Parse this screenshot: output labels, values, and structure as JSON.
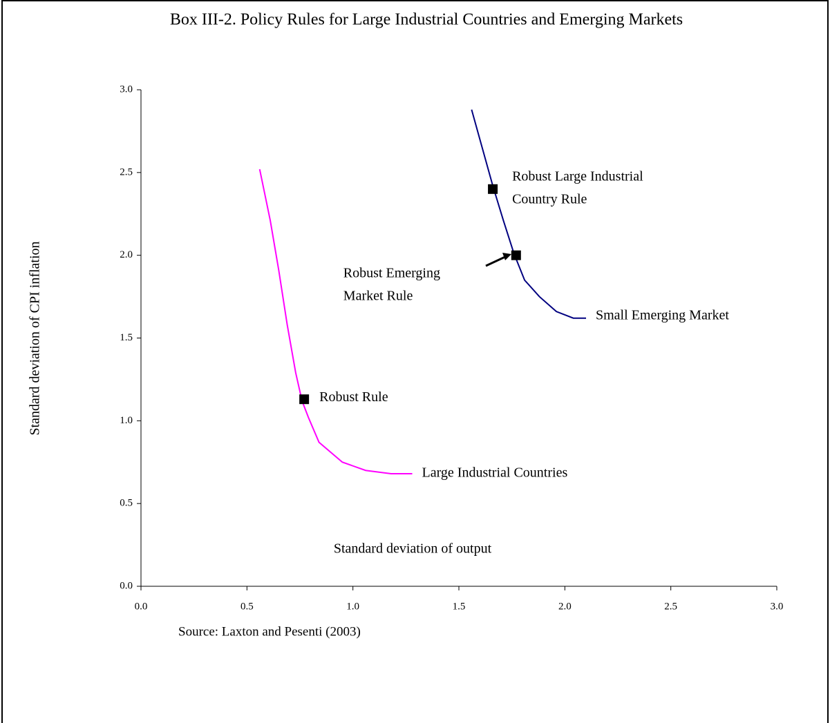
{
  "chart_data": {
    "type": "line",
    "title": "Box III-2. Policy Rules for Large Industrial Countries and Emerging Markets",
    "x_label": "Standard deviation of output",
    "y_label": "Standard deviation of CPI inflation",
    "source": "Source: Laxton and Pesenti (2003)",
    "xlim": [
      0,
      3
    ],
    "ylim": [
      0,
      3
    ],
    "xticks": [
      {
        "value": 0,
        "label": "0.0"
      },
      {
        "value": 0.5,
        "label": "0.5"
      },
      {
        "value": 1,
        "label": "1.0"
      },
      {
        "value": 1.5,
        "label": "1.5"
      },
      {
        "value": 2,
        "label": "2.0"
      },
      {
        "value": 2.5,
        "label": "2.5"
      },
      {
        "value": 3,
        "label": "3.0"
      }
    ],
    "yticks": [
      {
        "value": 0,
        "label": "0.0"
      },
      {
        "value": 0.5,
        "label": "0.5"
      },
      {
        "value": 1,
        "label": "1.0"
      },
      {
        "value": 1.5,
        "label": "1.5"
      },
      {
        "value": 2,
        "label": "2.0"
      },
      {
        "value": 2.5,
        "label": "2.5"
      },
      {
        "value": 3,
        "label": "3.0"
      }
    ],
    "series": [
      {
        "name": "Large Industrial Countries",
        "color": "#ff00ff",
        "x": [
          0.56,
          0.61,
          0.65,
          0.69,
          0.73,
          0.76,
          0.79,
          0.84,
          0.95,
          1.06,
          1.18,
          1.28
        ],
        "values": [
          2.52,
          2.21,
          1.91,
          1.58,
          1.29,
          1.12,
          1.02,
          0.87,
          0.75,
          0.7,
          0.68,
          0.68
        ]
      },
      {
        "name": "Small Emerging Market",
        "color": "#000080",
        "x": [
          1.56,
          1.61,
          1.66,
          1.71,
          1.76,
          1.81,
          1.88,
          1.96,
          2.04,
          2.1
        ],
        "values": [
          2.88,
          2.65,
          2.42,
          2.21,
          2.01,
          1.85,
          1.75,
          1.66,
          1.62,
          1.62
        ]
      }
    ],
    "points": [
      {
        "label": [
          "Robust Rule"
        ],
        "x": 0.77,
        "y": 1.13,
        "color": "#000000"
      },
      {
        "label": [
          "Robust Large Industrial",
          "Country Rule"
        ],
        "x": 1.66,
        "y": 2.4,
        "color": "#000000"
      },
      {
        "label": [
          "Robust Emerging",
          "Market Rule"
        ],
        "x": 1.77,
        "y": 2.0,
        "color": "#000000"
      }
    ]
  }
}
